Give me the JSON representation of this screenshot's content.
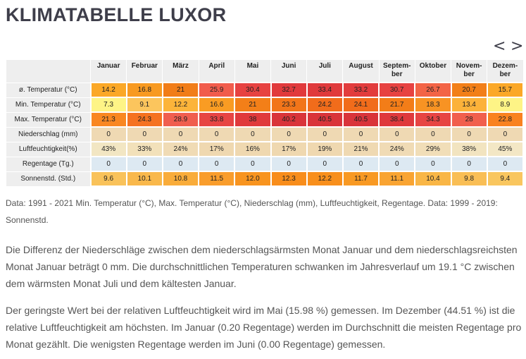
{
  "title": "KLIMATABELLE LUXOR",
  "nav": {
    "prev": "<",
    "next": ">"
  },
  "table": {
    "months": [
      "Januar",
      "Februar",
      "März",
      "April",
      "Mai",
      "Juni",
      "Juli",
      "August",
      "Septem-\nber",
      "Oktober",
      "Novem-\nber",
      "Dezem-\nber"
    ],
    "rows": [
      {
        "label": "ø. Temperatur (°C)",
        "values": [
          "14.2",
          "16.8",
          "21",
          "25.9",
          "30.4",
          "32.7",
          "33.4",
          "33.2",
          "30.7",
          "26.7",
          "20.7",
          "15.7"
        ],
        "colors": [
          "#fba827",
          "#f89a21",
          "#f17d18",
          "#f15c4c",
          "#e74241",
          "#e13a3c",
          "#e03a3c",
          "#e23c3d",
          "#e74241",
          "#f36446",
          "#f27f18",
          "#fba827"
        ]
      },
      {
        "label": "Min. Temperatur (°C)",
        "values": [
          "7.3",
          "9.1",
          "12.2",
          "16.6",
          "21",
          "23.3",
          "24.2",
          "24.1",
          "21.7",
          "18.3",
          "13.4",
          "8.9"
        ],
        "colors": [
          "#fef486",
          "#fcc55d",
          "#fcb43a",
          "#f99c23",
          "#f37f18",
          "#f27519",
          "#f16c1b",
          "#f16c1b",
          "#f37d18",
          "#f89323",
          "#fcb23a",
          "#fef486"
        ]
      },
      {
        "label": "Max. Temperatur (°C)",
        "values": [
          "21.3",
          "24.3",
          "28.9",
          "33.8",
          "38",
          "40.2",
          "40.5",
          "40.5",
          "38.4",
          "34.3",
          "28",
          "22.8"
        ],
        "colors": [
          "#f98721",
          "#f57220",
          "#f05e4f",
          "#e74543",
          "#e03a3c",
          "#d9343a",
          "#d9343a",
          "#d9343a",
          "#df393c",
          "#e74543",
          "#f15f4d",
          "#f9821f"
        ]
      },
      {
        "label": "Niederschlag (mm)",
        "values": [
          "0",
          "0",
          "0",
          "0",
          "0",
          "0",
          "0",
          "0",
          "0",
          "0",
          "0",
          "0"
        ],
        "colors": [
          "#efd9b3",
          "#efd9b3",
          "#efd9b3",
          "#efd9b3",
          "#efd9b3",
          "#efd9b3",
          "#efd9b3",
          "#efd9b3",
          "#efd9b3",
          "#efd9b3",
          "#efd9b3",
          "#efd9b3"
        ]
      },
      {
        "label": "Luftfeuchtigkeit(%)",
        "values": [
          "43%",
          "33%",
          "24%",
          "17%",
          "16%",
          "17%",
          "19%",
          "21%",
          "24%",
          "29%",
          "38%",
          "45%"
        ],
        "colors": [
          "#f2e6c3",
          "#f2e1ba",
          "#f0dbb5",
          "#efd8b0",
          "#efd8b0",
          "#efd8b0",
          "#efd8b0",
          "#efd9b2",
          "#f0dbb5",
          "#f1deb8",
          "#f2e4c0",
          "#f3e7c5"
        ]
      },
      {
        "label": "Regentage (Tg.)",
        "values": [
          "0",
          "0",
          "0",
          "0",
          "0",
          "0",
          "0",
          "0",
          "0",
          "0",
          "0",
          "0"
        ],
        "colors": [
          "#dde9f2",
          "#dde9f2",
          "#dde9f2",
          "#dde9f2",
          "#dde9f2",
          "#dde9f2",
          "#dde9f2",
          "#dde9f2",
          "#dde9f2",
          "#dde9f2",
          "#dde9f2",
          "#dde9f2"
        ]
      },
      {
        "label": "Sonnenstd. (Std.)",
        "values": [
          "9.6",
          "10.1",
          "10.8",
          "11.5",
          "12.0",
          "12.3",
          "12.2",
          "11.7",
          "11.1",
          "10.4",
          "9.8",
          "9.4"
        ],
        "colors": [
          "#f9c25a",
          "#f9b84b",
          "#f9ac3a",
          "#f99d2c",
          "#f8941f",
          "#f88d1b",
          "#f88f1c",
          "#f89923",
          "#f9a432",
          "#f9b646",
          "#f9be55",
          "#f9c65f"
        ]
      }
    ]
  },
  "caption": "Data: 1991 - 2021 Min. Temperatur (°C), Max. Temperatur (°C), Niederschlag (mm), Luftfeuchtigkeit, Regentage. Data: 1999 - 2019: Sonnenstd.",
  "paragraph1": "Die Differenz der Niederschläge zwischen dem niederschlagsärmsten Monat Januar und dem niederschlagsreichsten Monat Januar beträgt 0 mm. Die durchschnittlichen Temperaturen schwanken im Jahresverlauf um 19.1 °C zwischen dem wärmsten Monat Juli und dem kältesten Januar.",
  "paragraph2": "Der geringste Wert bei der relativen Luftfeuchtigkeit wird im Mai (15.98 %) gemessen. Im Dezember (44.51 %) ist die relative Luftfeuchtigkeit am höchsten. Im Januar (0.20 Regentage) werden im Durchschnitt die meisten Regentage pro Monat gezählt. Die wenigsten Regentage werden im Juni (0.00 Regentage) gemessen."
}
